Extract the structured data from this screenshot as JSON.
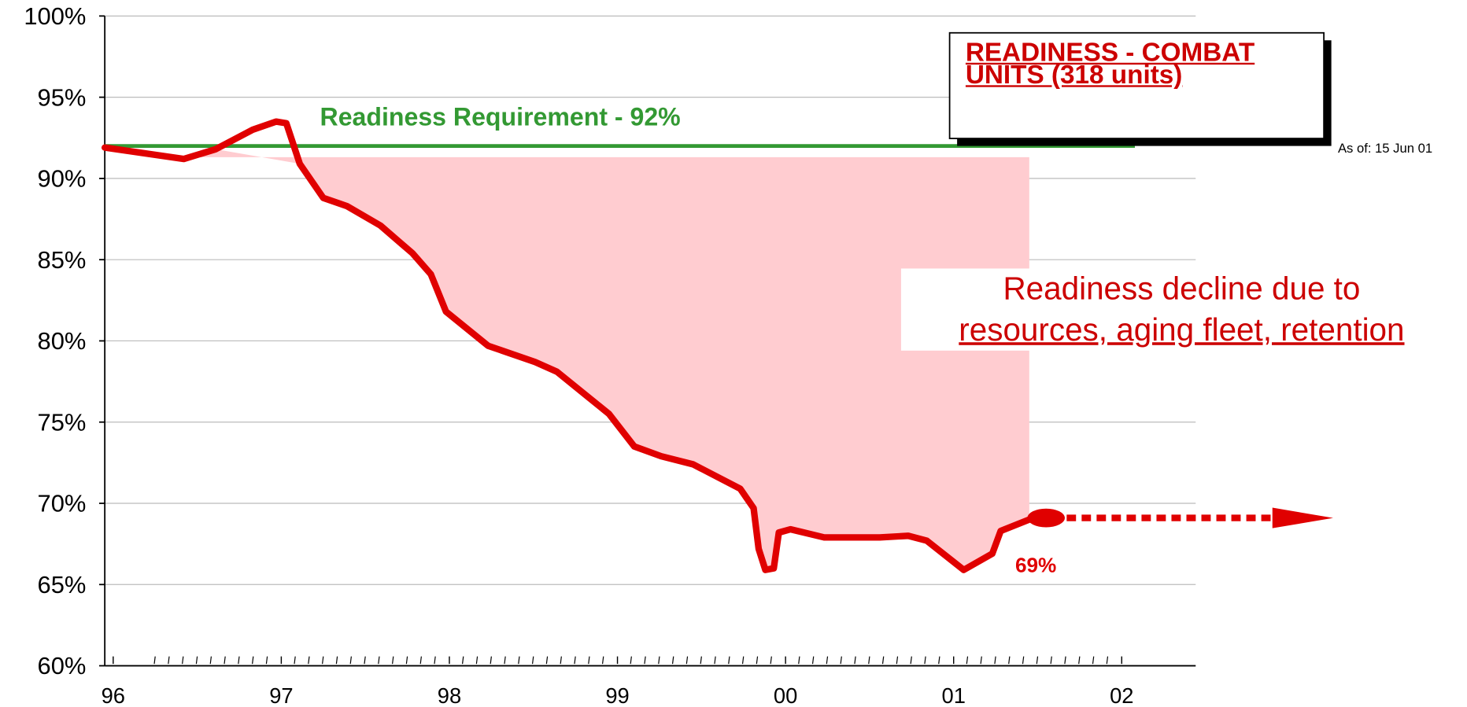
{
  "chart_data": {
    "type": "line",
    "title": "READINESS - COMBAT UNITS (318 units)",
    "as_of": "As of: 15 Jun 01",
    "note_lines": [
      "Readiness decline due to",
      "resources, aging fleet, retention"
    ],
    "requirement": {
      "value": 92,
      "label": "Readiness Requirement - 92%",
      "color": "#339933"
    },
    "annotations": [
      {
        "text": "69%",
        "x": 2001.55,
        "y": 69.1
      }
    ],
    "series": [
      {
        "name": "Readiness",
        "color": "#e00000",
        "x": [
          1995.95,
          1996.42,
          1996.61,
          1996.83,
          1996.97,
          1997.03,
          1997.11,
          1997.25,
          1997.39,
          1997.59,
          1997.78,
          1997.89,
          1997.98,
          1998.23,
          1998.51,
          1998.64,
          1998.95,
          1999.1,
          1999.26,
          1999.45,
          1999.73,
          1999.81,
          1999.84,
          1999.88,
          1999.93,
          1999.96,
          2000.03,
          2000.23,
          2000.56,
          2000.73,
          2000.84,
          2001.06,
          2001.23,
          2001.28,
          2001.45,
          2001.55
        ],
        "values": [
          91.9,
          91.2,
          91.8,
          93.0,
          93.5,
          93.4,
          90.9,
          88.8,
          88.3,
          87.1,
          85.4,
          84.1,
          81.8,
          79.7,
          78.7,
          78.1,
          75.5,
          73.5,
          72.9,
          72.4,
          70.9,
          69.7,
          67.2,
          65.9,
          66.0,
          68.2,
          68.4,
          67.9,
          67.9,
          68.0,
          67.7,
          65.9,
          66.9,
          68.3,
          69.0,
          69.1
        ]
      }
    ],
    "xlim": [
      1995.95,
      2002.44
    ],
    "xticks": [
      {
        "value": 1996,
        "label": "96"
      },
      {
        "value": 1997,
        "label": "97"
      },
      {
        "value": 1998,
        "label": "98"
      },
      {
        "value": 1999,
        "label": "99"
      },
      {
        "value": 2000,
        "label": "00"
      },
      {
        "value": 2001,
        "label": "01"
      },
      {
        "value": 2002,
        "label": "02"
      }
    ],
    "ylim": [
      60,
      100
    ],
    "yticks": [
      {
        "value": 60,
        "label": "60%"
      },
      {
        "value": 65,
        "label": "65%"
      },
      {
        "value": 70,
        "label": "70%"
      },
      {
        "value": 75,
        "label": "75%"
      },
      {
        "value": 80,
        "label": "80%"
      },
      {
        "value": 85,
        "label": "85%"
      },
      {
        "value": 90,
        "label": "90%"
      },
      {
        "value": 95,
        "label": "95%"
      },
      {
        "value": 100,
        "label": "100%"
      }
    ],
    "grid": true
  }
}
